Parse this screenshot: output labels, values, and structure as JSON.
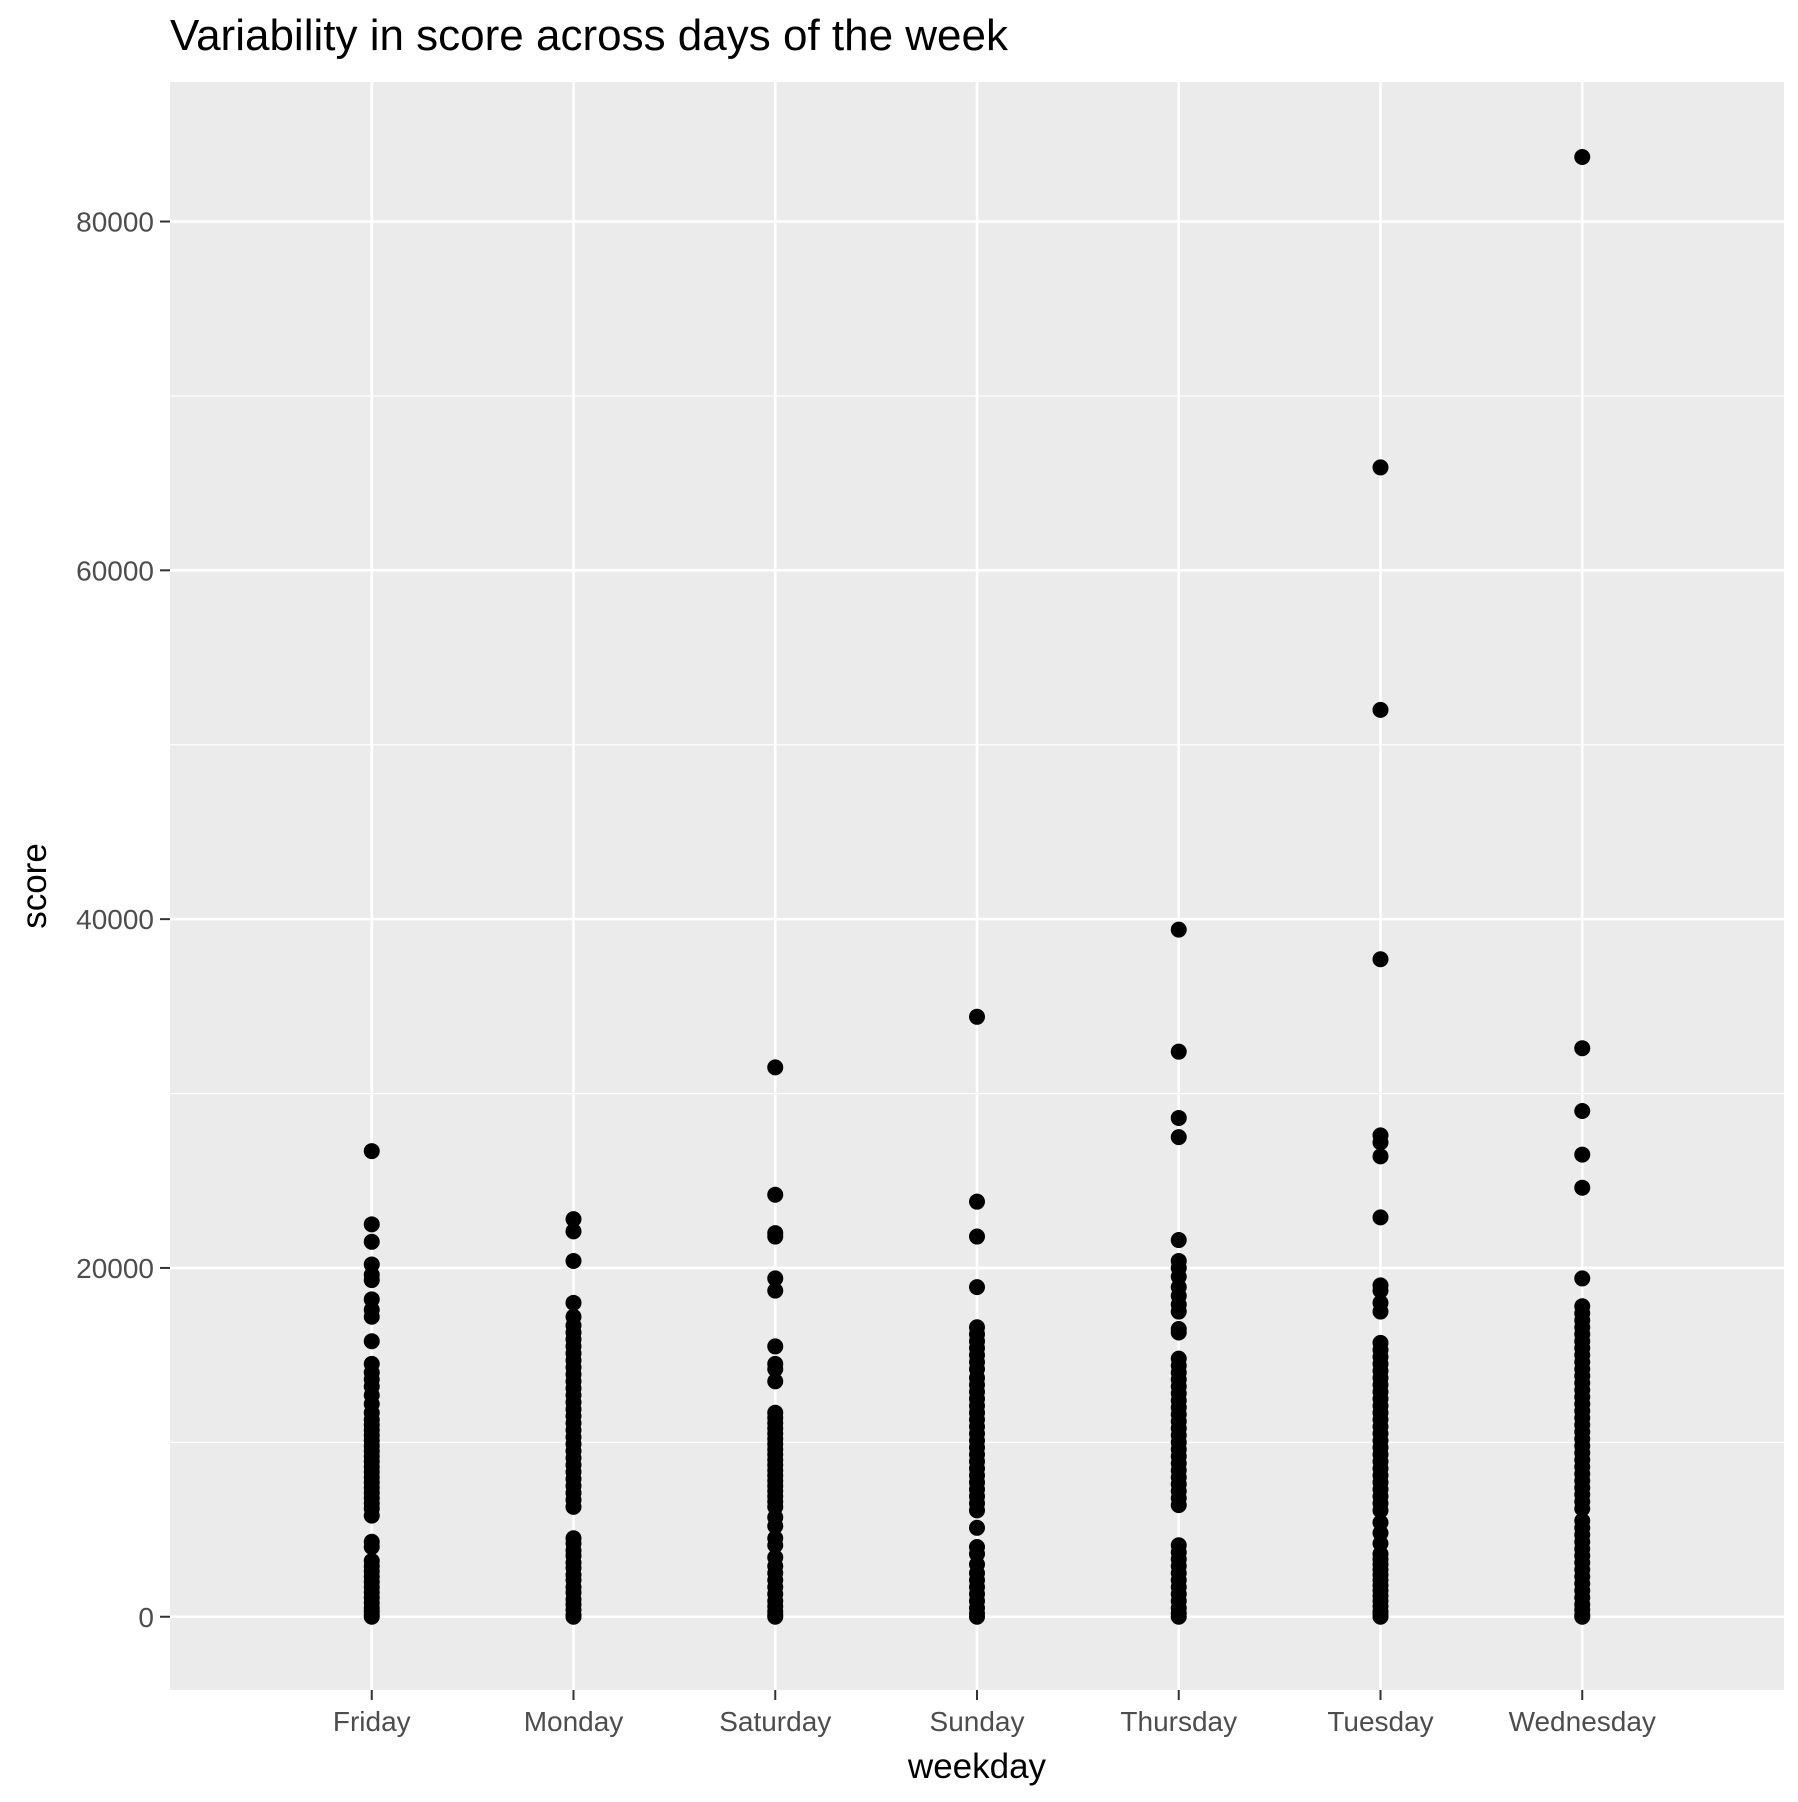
{
  "chart_data": {
    "type": "scatter",
    "title": "Variability in score across days of the week",
    "xlabel": "weekday",
    "ylabel": "score",
    "categories": [
      "Friday",
      "Monday",
      "Saturday",
      "Sunday",
      "Thursday",
      "Tuesday",
      "Wednesday"
    ],
    "ylim": [
      -4200,
      88000
    ],
    "yticks": [
      0,
      20000,
      40000,
      60000,
      80000
    ],
    "ytick_labels": [
      "0",
      "20000",
      "40000",
      "60000",
      "80000"
    ],
    "grid": true,
    "colors": {
      "panel": "#ebebeb",
      "grid": "#ffffff",
      "point": "#000000",
      "tick": "#333333"
    },
    "series": [
      {
        "name": "Friday",
        "values": [
          26700,
          22500,
          21500,
          20200,
          19600,
          19300,
          18200,
          17600,
          17200,
          15800,
          14500,
          14000,
          13600,
          13200,
          12700,
          12200,
          11700,
          11300,
          11000,
          10700,
          10400,
          10100,
          9800,
          9500,
          9200,
          8900,
          8600,
          8300,
          8000,
          7700,
          7400,
          7100,
          6800,
          6500,
          6200,
          5800,
          4300,
          4000,
          3200,
          2900,
          2600,
          2300,
          2000,
          1700,
          1400,
          1100,
          800,
          500,
          300,
          100,
          0
        ]
      },
      {
        "name": "Monday",
        "values": [
          22800,
          22100,
          20400,
          18000,
          17200,
          16700,
          16300,
          15900,
          15500,
          15100,
          14700,
          14300,
          13900,
          13500,
          13100,
          12700,
          12300,
          11900,
          11500,
          11100,
          10700,
          10300,
          9900,
          9500,
          9100,
          8700,
          8300,
          7900,
          7500,
          7100,
          6700,
          6300,
          4500,
          4200,
          3800,
          3500,
          3100,
          2800,
          2400,
          2100,
          1700,
          1400,
          1000,
          700,
          400,
          100,
          0
        ]
      },
      {
        "name": "Saturday",
        "values": [
          31500,
          24200,
          22000,
          21800,
          19400,
          18700,
          15500,
          14500,
          14200,
          13500,
          11700,
          11400,
          11100,
          10800,
          10500,
          10200,
          9900,
          9600,
          9300,
          9000,
          8700,
          8400,
          8100,
          7800,
          7500,
          7200,
          6900,
          6600,
          6300,
          5700,
          5200,
          4500,
          4100,
          3400,
          2900,
          2500,
          2100,
          1700,
          1300,
          900,
          600,
          300,
          100,
          0
        ]
      },
      {
        "name": "Sunday",
        "values": [
          34400,
          23800,
          21800,
          18900,
          16600,
          16200,
          15800,
          15400,
          15000,
          14600,
          14200,
          13700,
          13300,
          12900,
          12500,
          12100,
          11700,
          11300,
          10900,
          10500,
          10100,
          9700,
          9300,
          8900,
          8500,
          8100,
          7700,
          7300,
          6900,
          6500,
          6100,
          5100,
          4000,
          3600,
          3000,
          2500,
          2100,
          1700,
          1300,
          900,
          500,
          200,
          0
        ]
      },
      {
        "name": "Thursday",
        "values": [
          39400,
          32400,
          28600,
          27500,
          21600,
          20400,
          20000,
          19500,
          18900,
          18400,
          17900,
          17500,
          16500,
          16300,
          14800,
          14400,
          14000,
          13600,
          13200,
          12800,
          12400,
          12000,
          11600,
          11200,
          10800,
          10400,
          10000,
          9600,
          9200,
          8800,
          8400,
          8000,
          7600,
          7200,
          6800,
          6400,
          4100,
          3700,
          3300,
          2900,
          2500,
          2100,
          1700,
          1300,
          900,
          500,
          200,
          0
        ]
      },
      {
        "name": "Tuesday",
        "values": [
          65900,
          52000,
          37700,
          27600,
          27200,
          26400,
          22900,
          19000,
          18700,
          18000,
          17500,
          15700,
          15300,
          14900,
          14500,
          14100,
          13700,
          13300,
          12900,
          12500,
          12100,
          11700,
          11300,
          10900,
          10500,
          10100,
          9700,
          9300,
          8900,
          8500,
          8100,
          7700,
          7300,
          6900,
          6500,
          6100,
          5400,
          4800,
          4200,
          3600,
          3300,
          3000,
          2700,
          2400,
          2100,
          1800,
          1500,
          1200,
          900,
          600,
          300,
          100,
          0
        ]
      },
      {
        "name": "Wednesday",
        "values": [
          83700,
          32600,
          29000,
          26500,
          24600,
          19400,
          17800,
          17400,
          17000,
          16600,
          16200,
          15800,
          15400,
          15000,
          14600,
          14200,
          13800,
          13400,
          13000,
          12600,
          12200,
          11800,
          11400,
          11000,
          10600,
          10200,
          9800,
          9400,
          9000,
          8600,
          8200,
          7800,
          7400,
          7000,
          6600,
          6200,
          5500,
          5100,
          4700,
          4300,
          3900,
          3500,
          3100,
          2700,
          2300,
          1900,
          1500,
          1100,
          700,
          400,
          100,
          0
        ]
      }
    ]
  }
}
